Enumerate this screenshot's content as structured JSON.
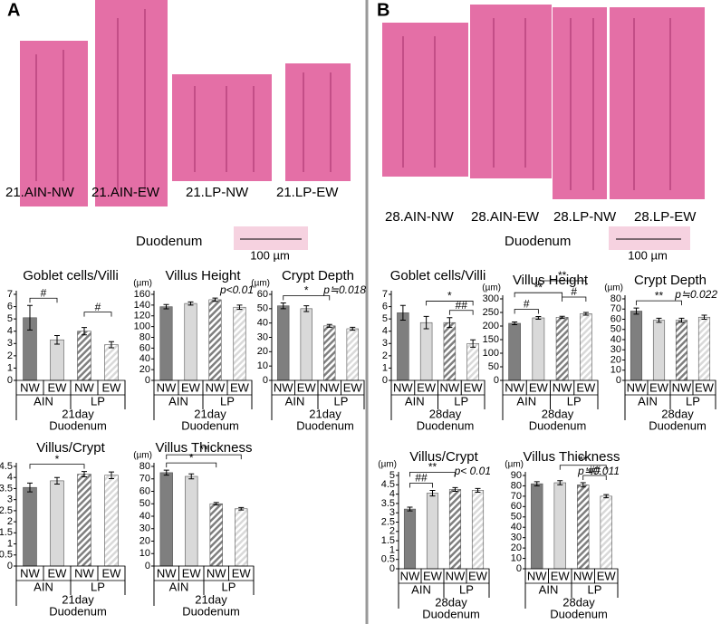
{
  "panels": [
    {
      "letter": "A",
      "images": [
        "21.AIN-NW",
        "21.AIN-EW",
        "21.LP-NW",
        "21.LP-EW"
      ],
      "section": "Duodenum",
      "scale_label": "100 µm"
    },
    {
      "letter": "B",
      "images": [
        "28.AIN-NW",
        "28.AIN-EW",
        "28.LP-NW",
        "28.LP-EW"
      ],
      "section": "Duodenum",
      "scale_label": "100 µm"
    }
  ],
  "chart_data": [
    {
      "type": "bar",
      "title": "Goblet cells/Villi",
      "categories": [
        "NW",
        "EW",
        "NW",
        "EW"
      ],
      "groups": [
        "AIN",
        "LP"
      ],
      "xlabel": [
        "21day",
        "Duodenum"
      ],
      "values": [
        5.1,
        3.3,
        4.0,
        2.9
      ],
      "errors": [
        1.0,
        0.35,
        0.3,
        0.25
      ],
      "ylim": [
        0,
        7
      ],
      "yticks": [
        0,
        1,
        2,
        3,
        4,
        5,
        6,
        7
      ],
      "colors": [
        "#7f7f7f",
        "#d9d9d9",
        "#7f7f7f",
        "#d9d9d9"
      ],
      "hatched": [
        false,
        false,
        true,
        true
      ],
      "annotations": [
        {
          "text": "#",
          "bars": [
            0,
            1
          ]
        },
        {
          "text": "#",
          "bars": [
            2,
            3
          ]
        }
      ]
    },
    {
      "type": "bar",
      "title": "Villus Height",
      "ylabel": "(µm)",
      "categories": [
        "NW",
        "EW",
        "NW",
        "EW"
      ],
      "groups": [
        "AIN",
        "LP"
      ],
      "xlabel": [
        "21day",
        "Duodenum"
      ],
      "values": [
        137,
        143,
        150,
        136
      ],
      "errors": [
        4,
        3,
        3,
        4
      ],
      "ylim": [
        0,
        160
      ],
      "yticks": [
        0,
        20,
        40,
        60,
        80,
        100,
        120,
        140,
        160
      ],
      "colors": [
        "#7f7f7f",
        "#d9d9d9",
        "#7f7f7f",
        "#d9d9d9"
      ],
      "hatched": [
        false,
        false,
        true,
        true
      ],
      "annotations": [],
      "note": "p<0.01"
    },
    {
      "type": "bar",
      "title": "Crypt Depth",
      "ylabel": "(µm)",
      "categories": [
        "NW",
        "EW",
        "NW",
        "EW"
      ],
      "groups": [
        "AIN",
        "LP"
      ],
      "xlabel": [
        "21day",
        "Duodenum"
      ],
      "values": [
        52,
        50,
        38,
        36
      ],
      "errors": [
        2,
        2,
        1,
        1
      ],
      "ylim": [
        0,
        60
      ],
      "yticks": [
        0,
        10,
        20,
        30,
        40,
        50,
        60
      ],
      "colors": [
        "#7f7f7f",
        "#d9d9d9",
        "#7f7f7f",
        "#d9d9d9"
      ],
      "hatched": [
        false,
        false,
        true,
        true
      ],
      "annotations": [
        {
          "text": "*",
          "bars": [
            0,
            2
          ]
        }
      ],
      "note": "p≒0.018"
    },
    {
      "type": "bar",
      "title": "Villus/Crypt",
      "categories": [
        "NW",
        "EW",
        "NW",
        "EW"
      ],
      "groups": [
        "AIN",
        "LP"
      ],
      "xlabel": [
        "21day",
        "Duodenum"
      ],
      "values": [
        3.55,
        3.85,
        4.15,
        4.1
      ],
      "errors": [
        0.2,
        0.15,
        0.12,
        0.15
      ],
      "ylim": [
        0,
        4.5
      ],
      "yticks": [
        0,
        0.5,
        1,
        1.5,
        2,
        2.5,
        3,
        3.5,
        4,
        4.5
      ],
      "colors": [
        "#7f7f7f",
        "#d9d9d9",
        "#7f7f7f",
        "#d9d9d9"
      ],
      "hatched": [
        false,
        false,
        true,
        true
      ],
      "annotations": [
        {
          "text": "*",
          "bars": [
            0,
            2
          ]
        }
      ]
    },
    {
      "type": "bar",
      "title": "Villus Thickness",
      "ylabel": "(µm)",
      "categories": [
        "NW",
        "EW",
        "NW",
        "EW"
      ],
      "groups": [
        "AIN",
        "LP"
      ],
      "xlabel": [
        "21day",
        "Duodenum"
      ],
      "values": [
        75,
        72,
        50,
        46
      ],
      "errors": [
        2,
        2,
        1,
        1
      ],
      "ylim": [
        0,
        80
      ],
      "yticks": [
        0,
        10,
        20,
        30,
        40,
        50,
        60,
        70,
        80
      ],
      "colors": [
        "#7f7f7f",
        "#d9d9d9",
        "#7f7f7f",
        "#d9d9d9"
      ],
      "hatched": [
        false,
        false,
        true,
        true
      ],
      "annotations": [
        {
          "text": "*",
          "bars": [
            0,
            2
          ]
        },
        {
          "text": "**",
          "bars": [
            0,
            3
          ]
        }
      ]
    },
    {
      "type": "bar",
      "title": "Goblet cells/Villi",
      "categories": [
        "NW",
        "EW",
        "NW",
        "EW"
      ],
      "groups": [
        "AIN",
        "LP"
      ],
      "xlabel": [
        "28day",
        "Duodenum"
      ],
      "values": [
        5.5,
        4.7,
        4.7,
        3.0
      ],
      "errors": [
        0.6,
        0.5,
        0.4,
        0.3
      ],
      "ylim": [
        0,
        7
      ],
      "yticks": [
        0,
        1,
        2,
        3,
        4,
        5,
        6,
        7
      ],
      "colors": [
        "#7f7f7f",
        "#d9d9d9",
        "#7f7f7f",
        "#d9d9d9"
      ],
      "hatched": [
        false,
        false,
        true,
        true
      ],
      "annotations": [
        {
          "text": "##",
          "bars": [
            2,
            3
          ]
        },
        {
          "text": "*",
          "bars": [
            1,
            3
          ]
        }
      ]
    },
    {
      "type": "bar",
      "title": "Villus Height",
      "ylabel": "(µm)",
      "categories": [
        "NW",
        "EW",
        "NW",
        "EW"
      ],
      "groups": [
        "AIN",
        "LP"
      ],
      "xlabel": [
        "28day",
        "Duodenum"
      ],
      "values": [
        210,
        230,
        232,
        245
      ],
      "errors": [
        5,
        5,
        4,
        5
      ],
      "ylim": [
        0,
        300
      ],
      "yticks": [
        0,
        50,
        100,
        150,
        200,
        250,
        300
      ],
      "colors": [
        "#7f7f7f",
        "#d9d9d9",
        "#7f7f7f",
        "#d9d9d9"
      ],
      "hatched": [
        false,
        false,
        true,
        true
      ],
      "annotations": [
        {
          "text": "#",
          "bars": [
            0,
            1
          ]
        },
        {
          "text": "#",
          "bars": [
            2,
            3
          ]
        },
        {
          "text": "**",
          "bars": [
            0,
            2
          ]
        },
        {
          "text": "**",
          "bars": [
            1,
            3
          ]
        }
      ]
    },
    {
      "type": "bar",
      "title": "Crypt Depth",
      "ylabel": "(µm)",
      "categories": [
        "NW",
        "EW",
        "NW",
        "EW"
      ],
      "groups": [
        "AIN",
        "LP"
      ],
      "xlabel": [
        "28day",
        "Duodenum"
      ],
      "values": [
        68,
        59,
        59,
        62
      ],
      "errors": [
        3,
        2,
        2,
        2
      ],
      "ylim": [
        0,
        80
      ],
      "yticks": [
        0,
        10,
        20,
        30,
        40,
        50,
        60,
        70,
        80
      ],
      "colors": [
        "#7f7f7f",
        "#d9d9d9",
        "#7f7f7f",
        "#d9d9d9"
      ],
      "hatched": [
        false,
        false,
        true,
        true
      ],
      "annotations": [
        {
          "text": "**",
          "bars": [
            0,
            2
          ]
        }
      ],
      "note": "p≒0.022"
    },
    {
      "type": "bar",
      "title": "Villus/Crypt",
      "ylabel": "(µm)",
      "categories": [
        "NW",
        "EW",
        "NW",
        "EW"
      ],
      "groups": [
        "AIN",
        "LP"
      ],
      "xlabel": [
        "28day",
        "Duodenum"
      ],
      "values": [
        3.2,
        4.05,
        4.25,
        4.2
      ],
      "errors": [
        0.1,
        0.15,
        0.1,
        0.1
      ],
      "ylim": [
        0,
        5
      ],
      "yticks": [
        0,
        0.5,
        1,
        1.5,
        2,
        2.5,
        3,
        3.5,
        4,
        4.5,
        5
      ],
      "colors": [
        "#7f7f7f",
        "#d9d9d9",
        "#7f7f7f",
        "#d9d9d9"
      ],
      "hatched": [
        false,
        false,
        true,
        true
      ],
      "annotations": [
        {
          "text": "##",
          "bars": [
            0,
            1
          ]
        },
        {
          "text": "**",
          "bars": [
            0,
            2
          ]
        }
      ],
      "note": "p< 0.01"
    },
    {
      "type": "bar",
      "title": "Villus Thickness",
      "ylabel": "(µm)",
      "categories": [
        "NW",
        "EW",
        "NW",
        "EW"
      ],
      "groups": [
        "AIN",
        "LP"
      ],
      "xlabel": [
        "28day",
        "Duodenum"
      ],
      "values": [
        82,
        83,
        81,
        70
      ],
      "errors": [
        2,
        2,
        2,
        1.5
      ],
      "ylim": [
        0,
        90
      ],
      "yticks": [
        0,
        10,
        20,
        30,
        40,
        50,
        60,
        70,
        80,
        90
      ],
      "colors": [
        "#7f7f7f",
        "#d9d9d9",
        "#7f7f7f",
        "#d9d9d9"
      ],
      "hatched": [
        false,
        false,
        true,
        true
      ],
      "annotations": [
        {
          "text": "##",
          "bars": [
            2,
            3
          ]
        },
        {
          "text": "**",
          "bars": [
            1,
            3
          ]
        }
      ],
      "note": "p≒0.011"
    }
  ]
}
